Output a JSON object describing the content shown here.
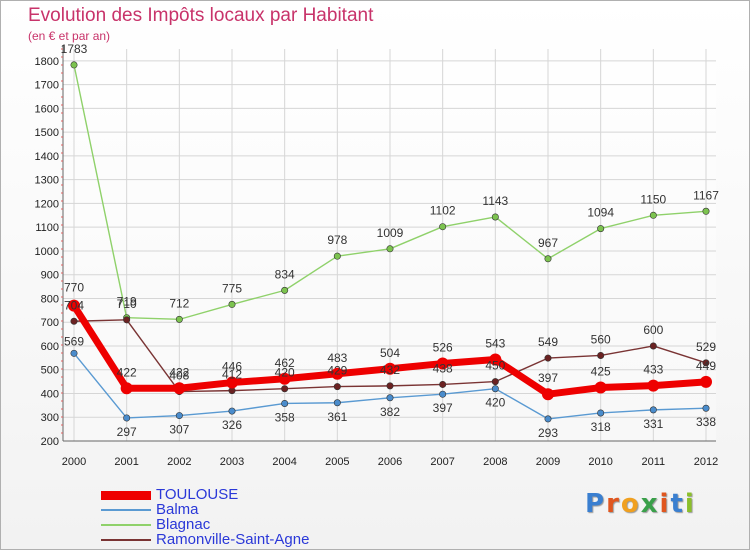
{
  "title": "Evolution des Impôts locaux par Habitant",
  "subtitle": "(en € et par an)",
  "logo": {
    "letters": [
      "P",
      "r",
      "o",
      "x",
      "i",
      "t",
      "i"
    ],
    "colors": [
      "#3a7fd0",
      "#e0561f",
      "#f0a020",
      "#3aa04a",
      "#e0561f",
      "#3a7fd0",
      "#8bbf2a"
    ]
  },
  "chart_data": {
    "type": "line",
    "categories": [
      "2000",
      "2001",
      "2002",
      "2003",
      "2004",
      "2005",
      "2006",
      "2007",
      "2008",
      "2009",
      "2010",
      "2011",
      "2012"
    ],
    "yticks": [
      200,
      300,
      400,
      500,
      600,
      700,
      800,
      900,
      1000,
      1100,
      1200,
      1300,
      1400,
      1500,
      1600,
      1700,
      1800
    ],
    "ylim": [
      200,
      1850
    ],
    "grid": true,
    "legend_position": "bottom-left",
    "series": [
      {
        "name": "Blagnac",
        "color": "#8fd16a",
        "marker": "#7cc34f",
        "values": [
          1783,
          719,
          712,
          775,
          834,
          978,
          1009,
          1102,
          1143,
          967,
          1094,
          1150,
          1167
        ]
      },
      {
        "name": "Ramonville-Saint-Agne",
        "color": "#7a3434",
        "marker": "#6b2222",
        "values": [
          704,
          710,
          408,
          412,
          420,
          429,
          432,
          438,
          450,
          549,
          560,
          600,
          529
        ]
      },
      {
        "name": "Balma",
        "color": "#5a9ad2",
        "marker": "#4a8ccc",
        "values": [
          569,
          297,
          307,
          326,
          358,
          361,
          382,
          397,
          420,
          293,
          318,
          331,
          338
        ]
      },
      {
        "name": "TOULOUSE",
        "color": "#ee0000",
        "marker": "#ee0000",
        "values": [
          770,
          422,
          422,
          446,
          462,
          483,
          504,
          526,
          543,
          397,
          425,
          433,
          449
        ]
      }
    ],
    "legend_order": [
      "TOULOUSE",
      "Balma",
      "Blagnac",
      "Ramonville-Saint-Agne"
    ]
  }
}
